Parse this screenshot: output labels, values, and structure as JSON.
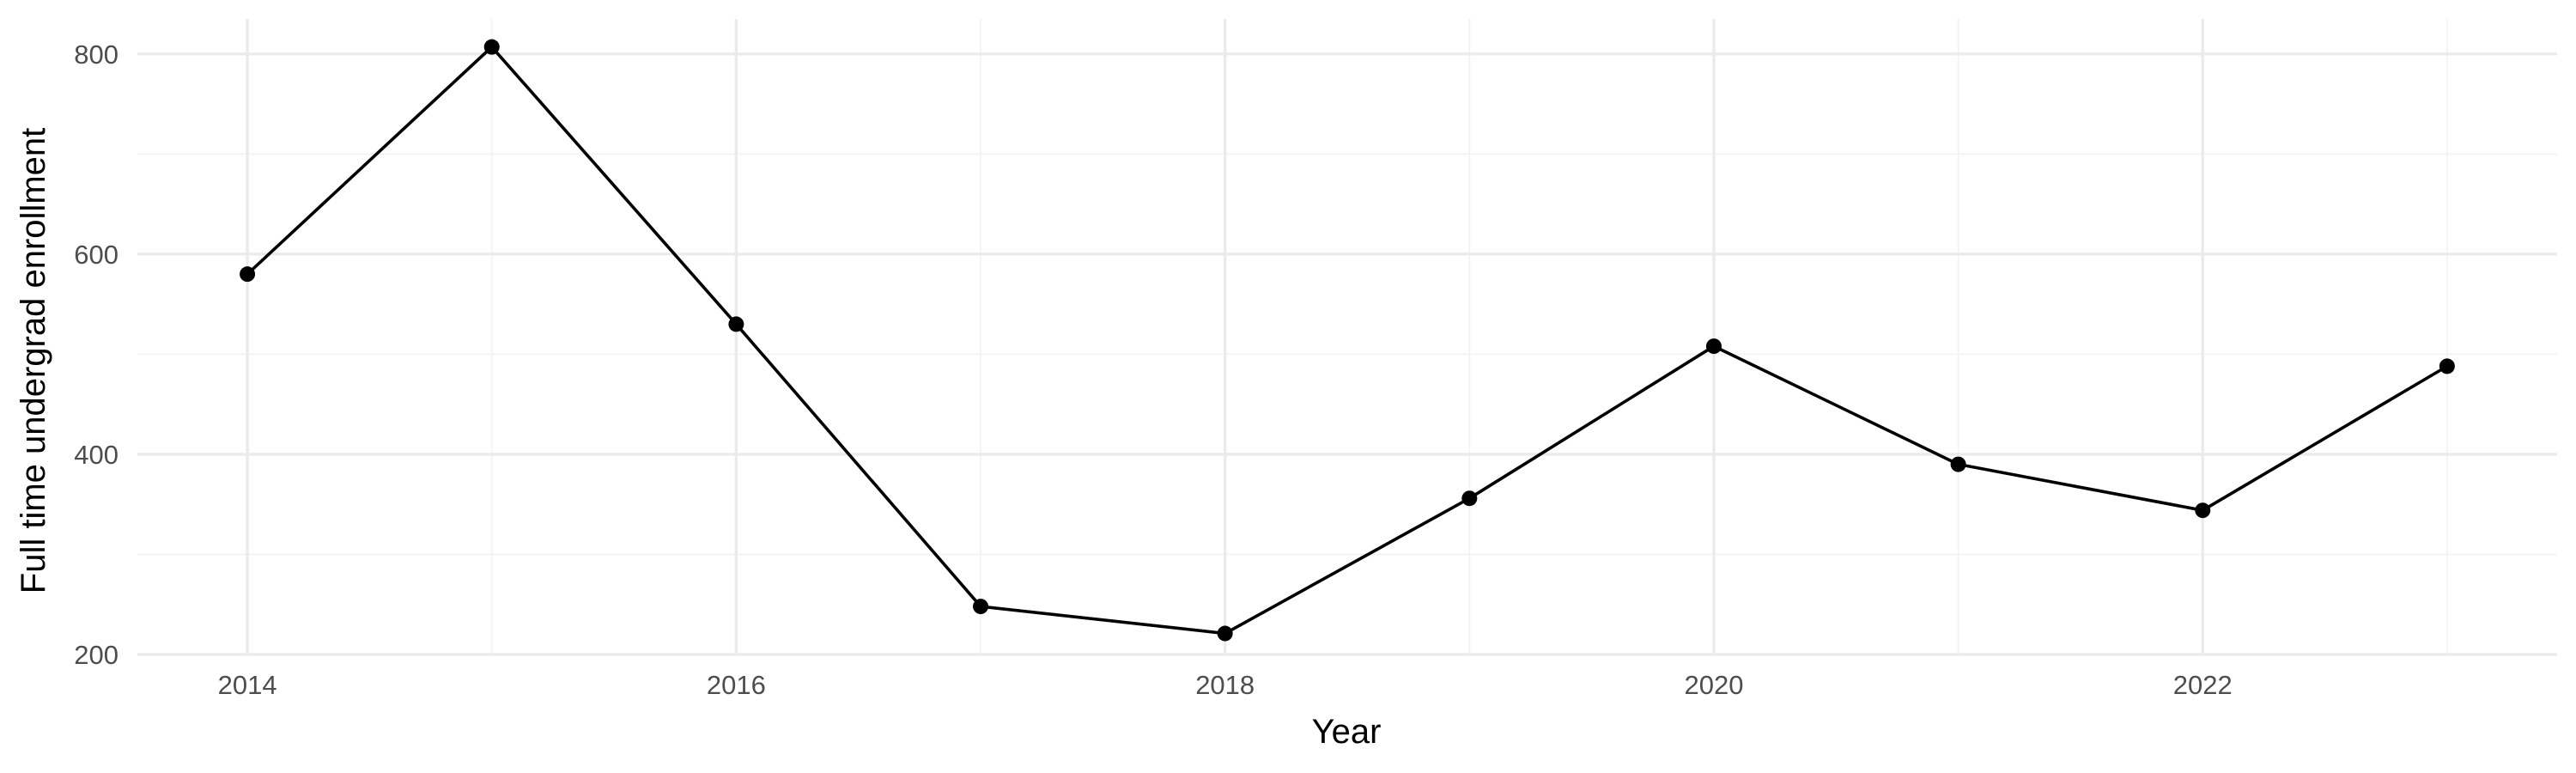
{
  "chart_data": {
    "type": "line",
    "title": "",
    "xlabel": "Year",
    "ylabel": "Full time undergrad enrollment",
    "x": [
      2014,
      2015,
      2016,
      2017,
      2018,
      2019,
      2020,
      2021,
      2022,
      2023
    ],
    "series": [
      {
        "values": [
          580,
          807,
          530,
          248,
          221,
          356,
          508,
          390,
          344,
          488
        ]
      }
    ],
    "xlim": [
      2013.55,
      2023.45
    ],
    "ylim": [
      200,
      835
    ],
    "x_ticks": [
      2014,
      2016,
      2018,
      2020,
      2022
    ],
    "x_tick_labels": [
      "2014",
      "2016",
      "2018",
      "2020",
      "2022"
    ],
    "y_ticks": [
      200,
      400,
      600,
      800
    ],
    "y_tick_labels": [
      "200",
      "400",
      "600",
      "800"
    ],
    "grid": true,
    "legend": "none",
    "line_color": "#000000",
    "grid_color": "#ebebeb"
  }
}
